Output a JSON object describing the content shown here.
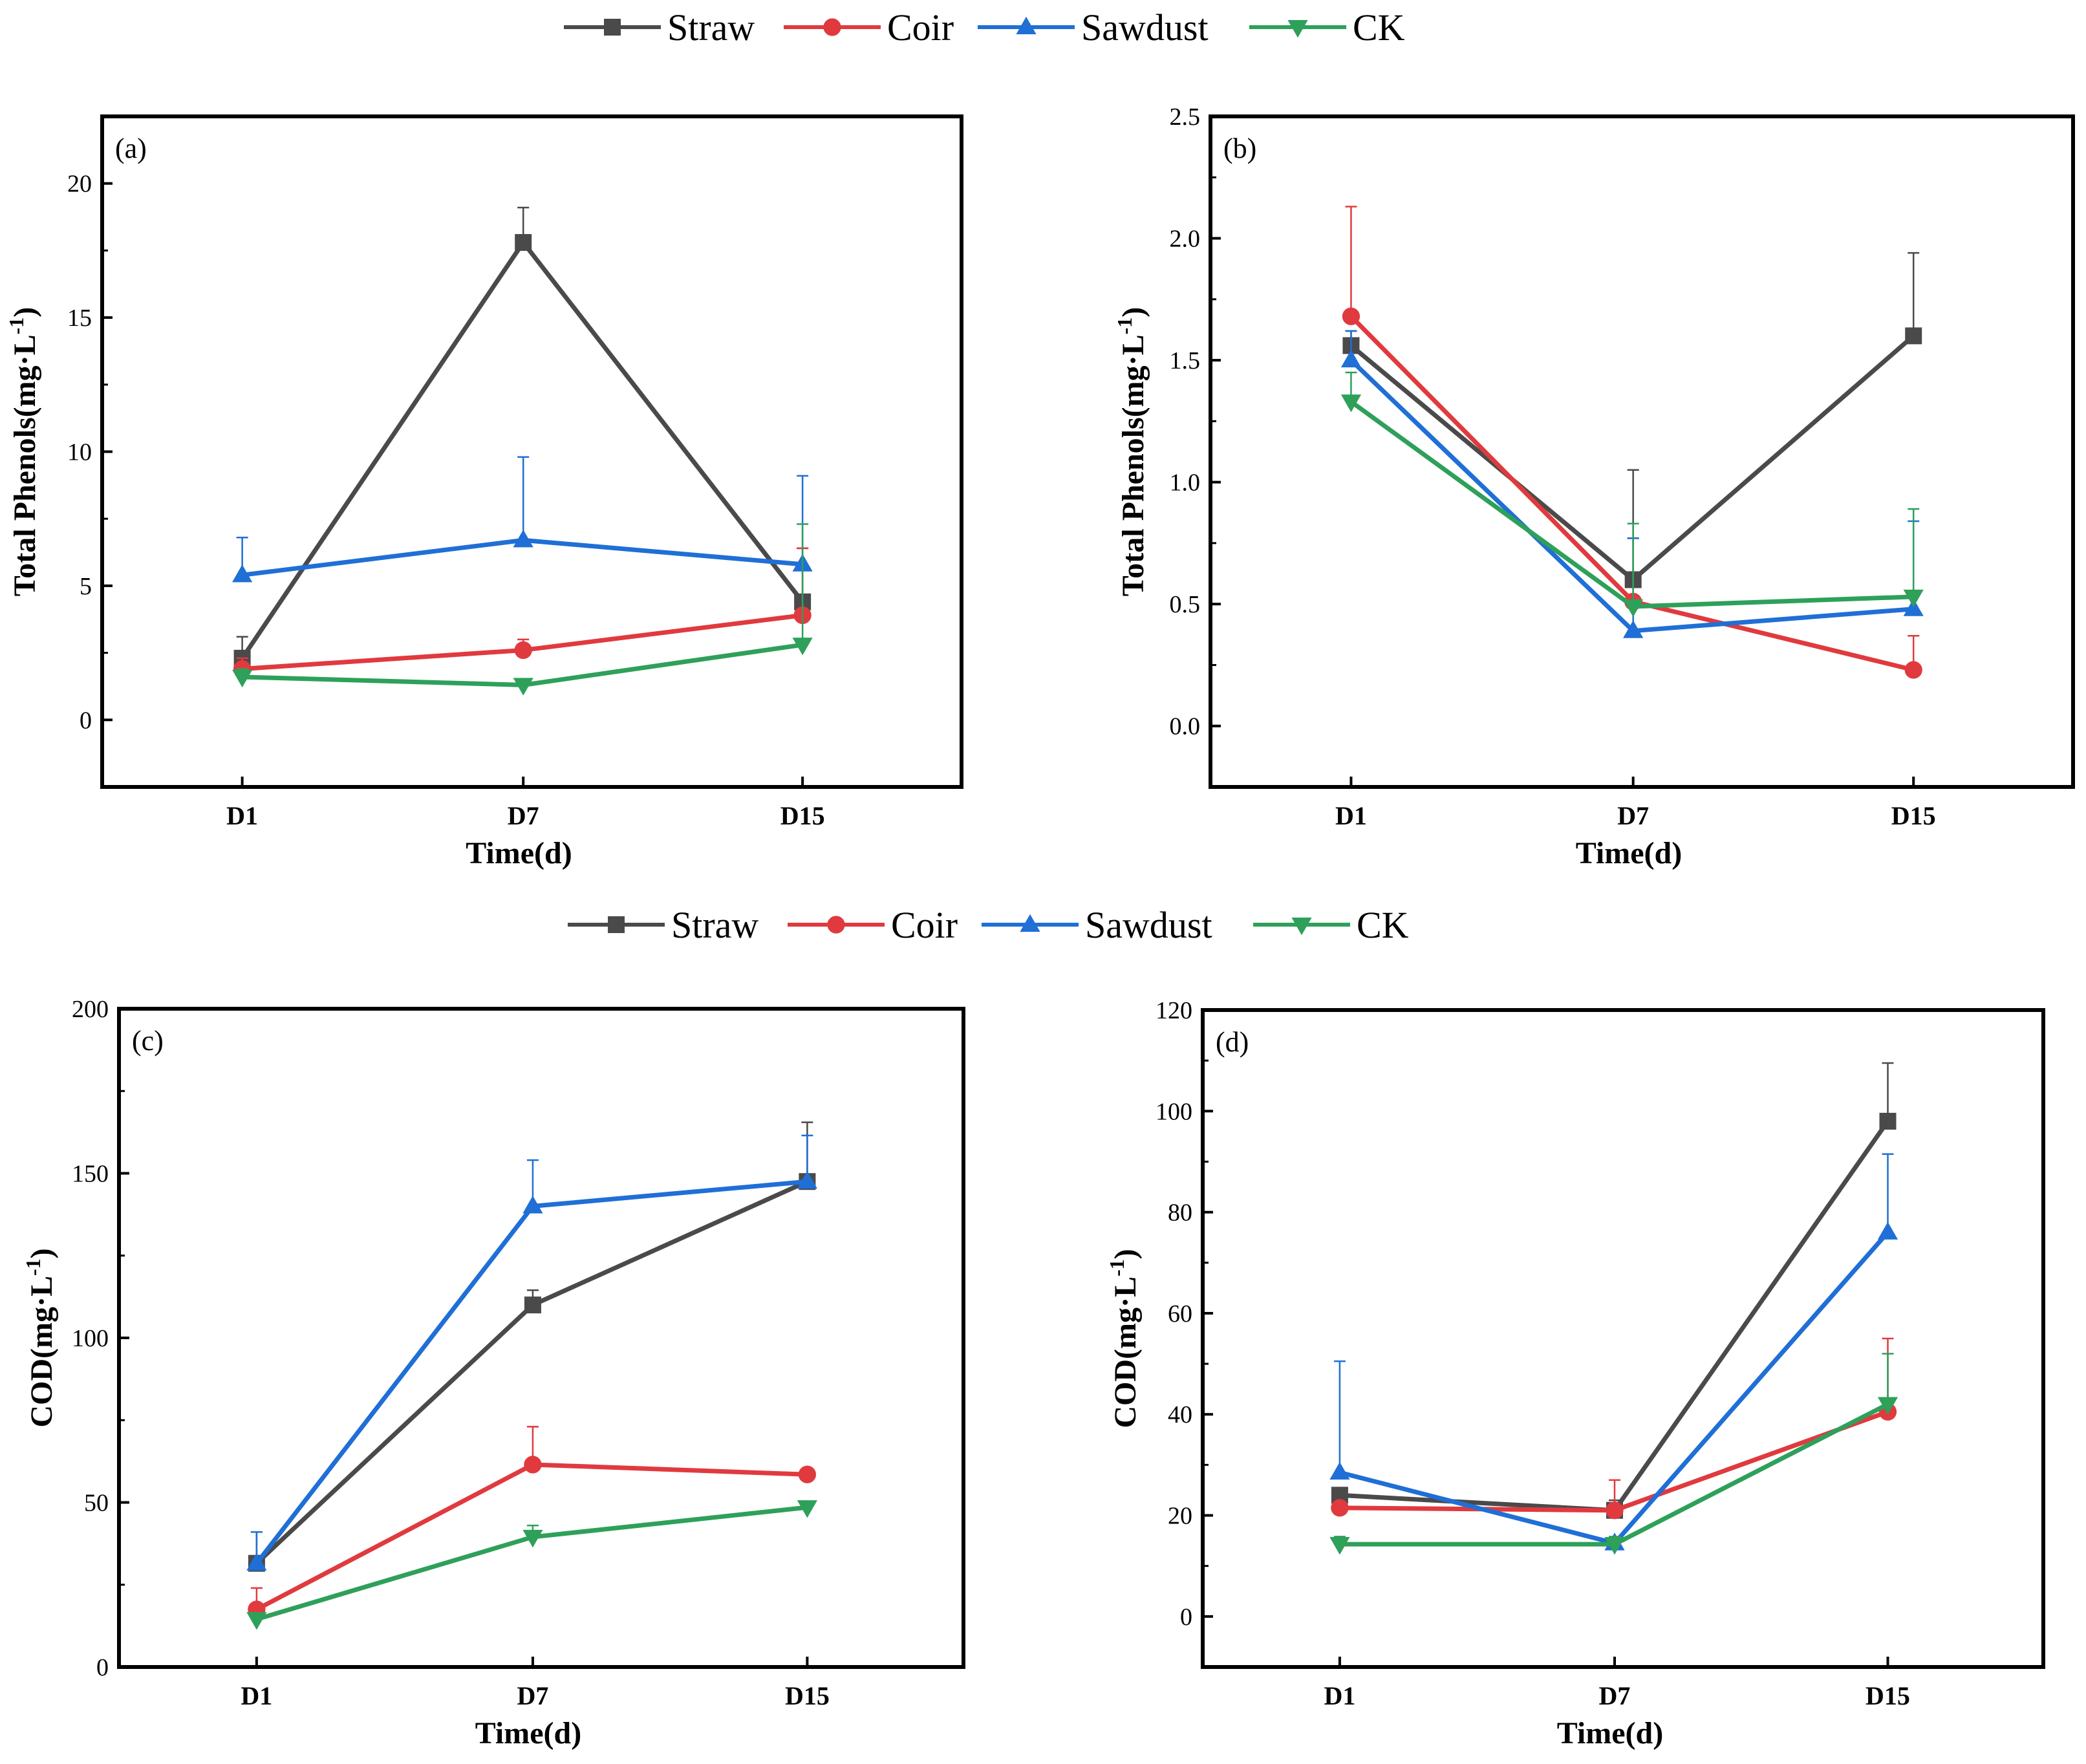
{
  "legend": {
    "entries": [
      {
        "name": "Straw",
        "color": "#4a4a4a",
        "marker": "square"
      },
      {
        "name": "Coir",
        "color": "#e03a3e",
        "marker": "circle"
      },
      {
        "name": "Sawdust",
        "color": "#1f6fd6",
        "marker": "triangle-up"
      },
      {
        "name": "CK",
        "color": "#2ea05a",
        "marker": "triangle-down"
      }
    ]
  },
  "chart_data": [
    {
      "panel": "(a)",
      "type": "line",
      "categories": [
        "D1",
        "D7",
        "D15"
      ],
      "xlabel": "Time(d)",
      "ylabel": "Total Phenols(mg·L",
      "ylabel_sup": "-1",
      "ylabel_close": ")",
      "ylim": [
        -2.5,
        22.5
      ],
      "yticks": [
        0,
        5,
        10,
        15,
        20
      ],
      "ytick_labels": [
        "0",
        "5",
        "10",
        "15",
        "20"
      ],
      "series": [
        {
          "name": "Straw",
          "values": [
            2.3,
            17.8,
            4.4
          ],
          "errors": [
            0.8,
            1.3,
            2.0
          ]
        },
        {
          "name": "Coir",
          "values": [
            1.9,
            2.6,
            3.9
          ],
          "errors": [
            0.4,
            0.4,
            2.5
          ]
        },
        {
          "name": "Sawdust",
          "values": [
            5.4,
            6.7,
            5.8
          ],
          "errors": [
            1.4,
            3.1,
            3.3
          ]
        },
        {
          "name": "CK",
          "values": [
            1.6,
            1.3,
            2.8
          ],
          "errors": [
            0.3,
            0.2,
            4.5
          ]
        }
      ]
    },
    {
      "panel": "(b)",
      "type": "line",
      "categories": [
        "D1",
        "D7",
        "D15"
      ],
      "xlabel": "Time(d)",
      "ylabel": "Total Phenols(mg·L",
      "ylabel_sup": "-1",
      "ylabel_close": ")",
      "ylim": [
        -0.25,
        2.5
      ],
      "yticks": [
        0.0,
        0.5,
        1.0,
        1.5,
        2.0,
        2.5
      ],
      "ytick_labels": [
        "0.0",
        "0.5",
        "1.0",
        "1.5",
        "2.0",
        "2.5"
      ],
      "series": [
        {
          "name": "Straw",
          "values": [
            1.56,
            0.6,
            1.6
          ],
          "errors": [
            0.06,
            0.45,
            0.34
          ]
        },
        {
          "name": "Coir",
          "values": [
            1.68,
            0.51,
            0.23
          ],
          "errors": [
            0.45,
            0.26,
            0.14
          ]
        },
        {
          "name": "Sawdust",
          "values": [
            1.5,
            0.39,
            0.48
          ],
          "errors": [
            0.12,
            0.38,
            0.36
          ]
        },
        {
          "name": "CK",
          "values": [
            1.33,
            0.49,
            0.53
          ],
          "errors": [
            0.12,
            0.34,
            0.36
          ]
        }
      ]
    },
    {
      "panel": "(c)",
      "type": "line",
      "categories": [
        "D1",
        "D7",
        "D15"
      ],
      "xlabel": "Time(d)",
      "ylabel": "COD(mg·L",
      "ylabel_sup": "-1",
      "ylabel_close": ")",
      "ylim": [
        0,
        200
      ],
      "yticks": [
        0,
        50,
        100,
        150,
        200
      ],
      "ytick_labels": [
        "0",
        "50",
        "100",
        "150",
        "200"
      ],
      "series": [
        {
          "name": "Straw",
          "values": [
            31.5,
            110,
            147.5
          ],
          "errors": [
            9.5,
            4.5,
            18.0
          ]
        },
        {
          "name": "Coir",
          "values": [
            17.5,
            61.5,
            58.5
          ],
          "errors": [
            6.5,
            11.5,
            0.5
          ]
        },
        {
          "name": "Sawdust",
          "values": [
            31.5,
            140,
            147.5
          ],
          "errors": [
            9.5,
            14.0,
            14.0
          ]
        },
        {
          "name": "CK",
          "values": [
            14.5,
            39.5,
            48.5
          ],
          "errors": [
            0.5,
            3.5,
            0.5
          ]
        }
      ]
    },
    {
      "panel": "(d)",
      "type": "line",
      "categories": [
        "D1",
        "D7",
        "D15"
      ],
      "xlabel": "Time(d)",
      "ylabel": "COD(mg·L",
      "ylabel_sup": "-1",
      "ylabel_close": ")",
      "ylim": [
        -10,
        120
      ],
      "yticks": [
        0,
        20,
        40,
        60,
        80,
        100,
        120
      ],
      "ytick_labels": [
        "0",
        "20",
        "40",
        "60",
        "80",
        "100",
        "120"
      ],
      "series": [
        {
          "name": "Straw",
          "values": [
            24,
            21,
            98
          ],
          "errors": [
            0.5,
            2.0,
            11.5
          ]
        },
        {
          "name": "Coir",
          "values": [
            21.5,
            21,
            40.5
          ],
          "errors": [
            0.5,
            6.0,
            14.5
          ]
        },
        {
          "name": "Sawdust",
          "values": [
            28.5,
            14.5,
            76
          ],
          "errors": [
            22.0,
            0.5,
            15.5
          ]
        },
        {
          "name": "CK",
          "values": [
            14.3,
            14.3,
            42
          ],
          "errors": [
            1.5,
            1.5,
            10.0
          ]
        }
      ]
    }
  ]
}
